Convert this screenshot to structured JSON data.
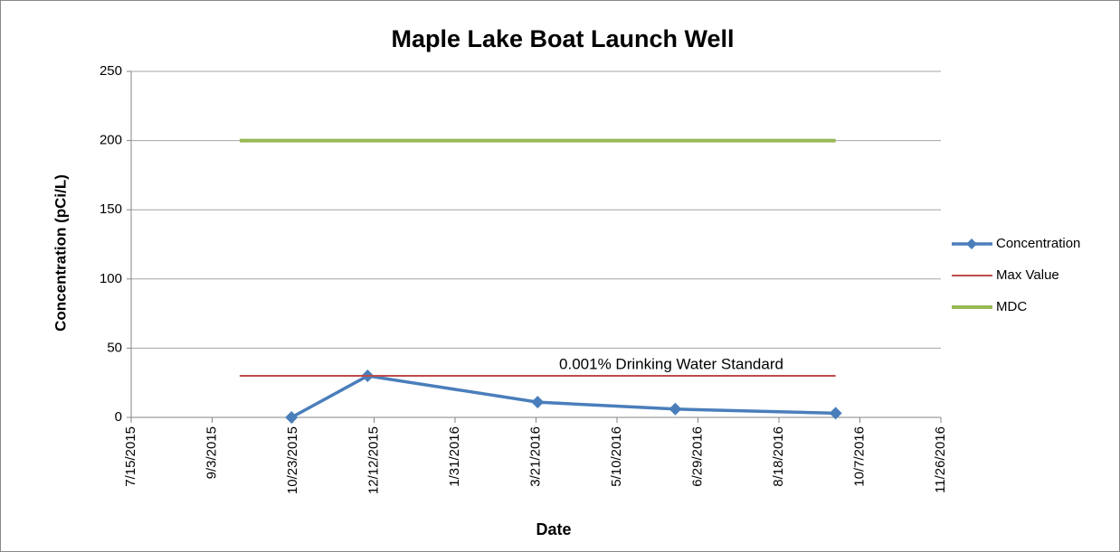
{
  "chart_data": {
    "type": "line",
    "title": "Maple Lake Boat Launch Well",
    "x_label": "Date",
    "y_label": "Concentration (pCi/L)",
    "annotation": "0.001% Drinking Water Standard",
    "xlim": [
      "2015-07-15",
      "2016-11-26"
    ],
    "xticks": [
      {
        "value": "2015-07-15",
        "label": "7/15/2015"
      },
      {
        "value": "2015-09-03",
        "label": "9/3/2015"
      },
      {
        "value": "2015-10-23",
        "label": "10/23/2015"
      },
      {
        "value": "2015-12-12",
        "label": "12/12/2015"
      },
      {
        "value": "2016-01-31",
        "label": "1/31/2016"
      },
      {
        "value": "2016-03-21",
        "label": "3/21/2016"
      },
      {
        "value": "2016-05-10",
        "label": "5/10/2016"
      },
      {
        "value": "2016-06-29",
        "label": "6/29/2016"
      },
      {
        "value": "2016-08-18",
        "label": "8/18/2016"
      },
      {
        "value": "2016-10-07",
        "label": "10/7/2016"
      },
      {
        "value": "2016-11-26",
        "label": "11/26/2016"
      }
    ],
    "ylim": [
      0,
      250
    ],
    "yticks": [
      0,
      50,
      100,
      150,
      200,
      250
    ],
    "grid": true,
    "legend": "right",
    "series": [
      {
        "name": "Concentration",
        "color": "#4a7ebb",
        "marker": "diamond",
        "x": [
          "2015-10-22",
          "2015-12-08",
          "2016-03-22",
          "2016-06-15",
          "2016-09-22"
        ],
        "values": [
          0,
          30,
          11,
          6,
          3
        ]
      },
      {
        "name": "Max Value",
        "color": "#be4b48",
        "x": [
          "2015-09-20",
          "2016-09-22"
        ],
        "values": [
          30,
          30
        ]
      },
      {
        "name": "MDC",
        "color": "#98b954",
        "x": [
          "2015-09-20",
          "2016-09-22"
        ],
        "values": [
          200,
          200
        ]
      }
    ]
  }
}
